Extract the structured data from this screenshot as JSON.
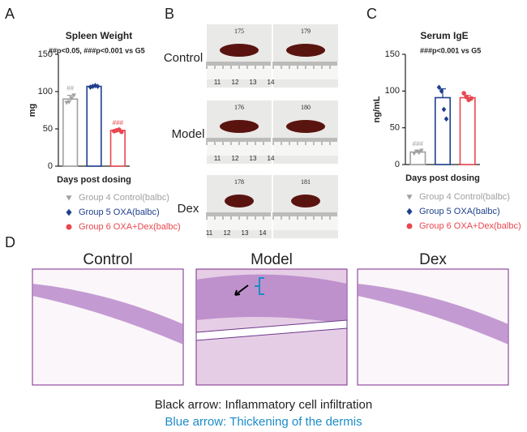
{
  "chart_data": [
    {
      "type": "bar",
      "title": "Spleen Weight",
      "annotation": "##p<0.05, ###p<0.001 vs G5",
      "xlabel": "Days post dosing",
      "ylabel": "mg",
      "ylim": [
        0,
        150
      ],
      "yticks": [
        0,
        50,
        100,
        150
      ],
      "series": [
        {
          "name": "Group 4 Control(balbc)",
          "color": "#a0a0a0",
          "marker": "triangle",
          "values": [
            90
          ],
          "error": [
            5
          ],
          "points": [
            85,
            86,
            91,
            95
          ],
          "bar_label": "##"
        },
        {
          "name": "Group 5 OXA(balbc)",
          "color": "#1f3f8f",
          "marker": "diamond",
          "values": [
            107
          ],
          "error": [
            1
          ],
          "points": [
            106,
            107,
            108,
            107
          ]
        },
        {
          "name": "Group 6 OXA+Dex(balbc)",
          "color": "#e8474f",
          "marker": "circle",
          "values": [
            48
          ],
          "error": [
            1
          ],
          "points": [
            47,
            48,
            49,
            46
          ],
          "bar_label": "###"
        }
      ]
    },
    {
      "type": "bar",
      "title": "Serum IgE",
      "annotation": "###p<0.001 vs G5",
      "xlabel": "Days post dosing",
      "ylabel": "ng/mL",
      "ylim": [
        0,
        150
      ],
      "yticks": [
        0,
        50,
        100,
        150
      ],
      "series": [
        {
          "name": "Group 4 Control(balbc)",
          "color": "#a0a0a0",
          "marker": "triangle",
          "values": [
            17
          ],
          "error": [
            2
          ],
          "points": [
            15,
            18,
            16,
            19
          ],
          "bar_label": "###"
        },
        {
          "name": "Group 5 OXA(balbc)",
          "color": "#1f3f8f",
          "marker": "diamond",
          "values": [
            91
          ],
          "error": [
            12
          ],
          "points": [
            105,
            100,
            75,
            62
          ]
        },
        {
          "name": "Group 6 OXA+Dex(balbc)",
          "color": "#e8474f",
          "marker": "circle",
          "values": [
            91
          ],
          "error": [
            3
          ],
          "points": [
            97,
            92,
            88,
            90
          ]
        }
      ]
    }
  ],
  "panels": [
    "A",
    "B",
    "C",
    "D"
  ],
  "photos": {
    "rows": [
      {
        "label": "Control",
        "ids": [
          "175",
          "179"
        ]
      },
      {
        "label": "Model",
        "ids": [
          "176",
          "180"
        ]
      },
      {
        "label": "Dex",
        "ids": [
          "178",
          "181"
        ]
      }
    ],
    "ruler": [
      "11",
      "12",
      "13",
      "14"
    ]
  },
  "histology": {
    "titles": [
      "Control",
      "Model",
      "Dex"
    ]
  },
  "captions": [
    "Black arrow: Inflammatory cell infiltration",
    "Blue arrow: Thickening of the dermis"
  ]
}
